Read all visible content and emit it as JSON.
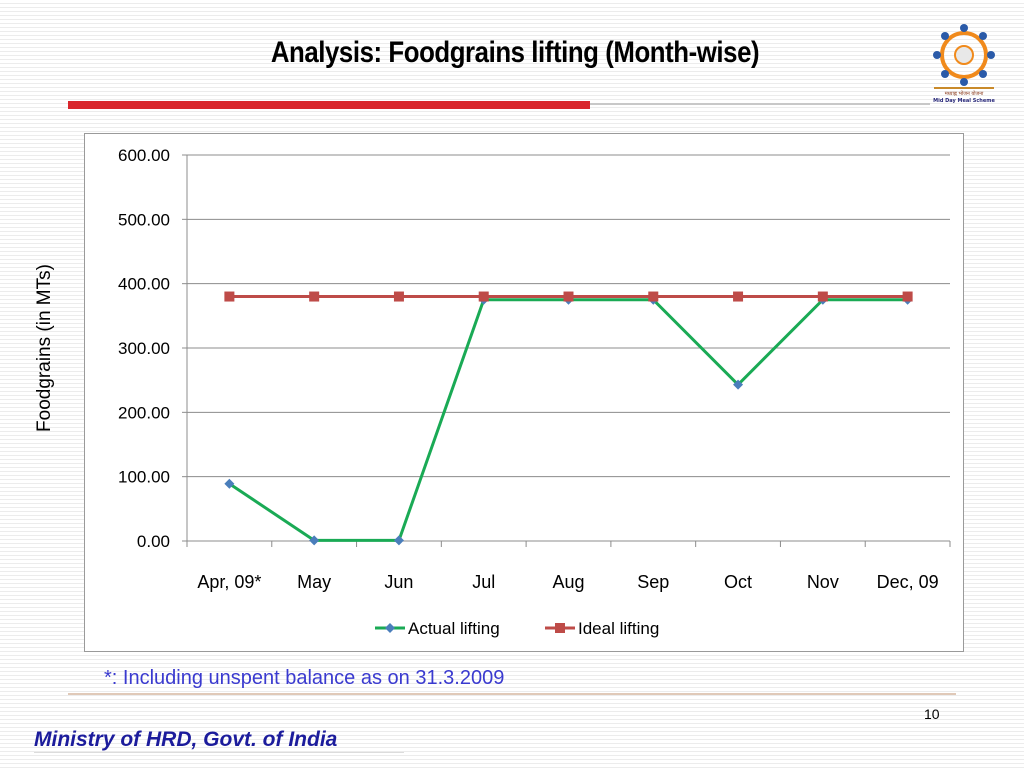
{
  "slide": {
    "title": "Analysis: Foodgrains lifting (Month-wise)",
    "footnote": "*: Including unspent balance  as on 31.3.2009",
    "page_number": "10",
    "footer": "Ministry of HRD, Govt. of India",
    "logo_icon": "mid-day-meal-logo-icon",
    "logo_text_line1": "मध्याह्न भोजन योजना",
    "logo_text_line2": "Mid Day Meal Scheme"
  },
  "colors": {
    "actual": "#1aaa55",
    "actual_marker": "#4a7ebb",
    "ideal": "#be4b48",
    "accent_red": "#d9262c",
    "footer_blue": "#1c1c9c",
    "footnote_blue": "#3a3acf"
  },
  "chart_data": {
    "type": "line",
    "title": "",
    "xlabel": "",
    "ylabel": "Foodgrains (in MTs)",
    "categories": [
      "Apr, 09*",
      "May",
      "Jun",
      "Jul",
      "Aug",
      "Sep",
      "Oct",
      "Nov",
      "Dec, 09"
    ],
    "ylim": [
      0,
      600
    ],
    "yticks": [
      "0.00",
      "100.00",
      "200.00",
      "300.00",
      "400.00",
      "500.00",
      "600.00"
    ],
    "grid": "horizontal",
    "legend": "bottom",
    "series": [
      {
        "name": "Actual lifting",
        "values": [
          89,
          1,
          1,
          375,
          375,
          375,
          243,
          375,
          375
        ],
        "marker": "diamond"
      },
      {
        "name": "Ideal lifting",
        "values": [
          380,
          380,
          380,
          380,
          380,
          380,
          380,
          380,
          380
        ],
        "marker": "square"
      }
    ]
  }
}
